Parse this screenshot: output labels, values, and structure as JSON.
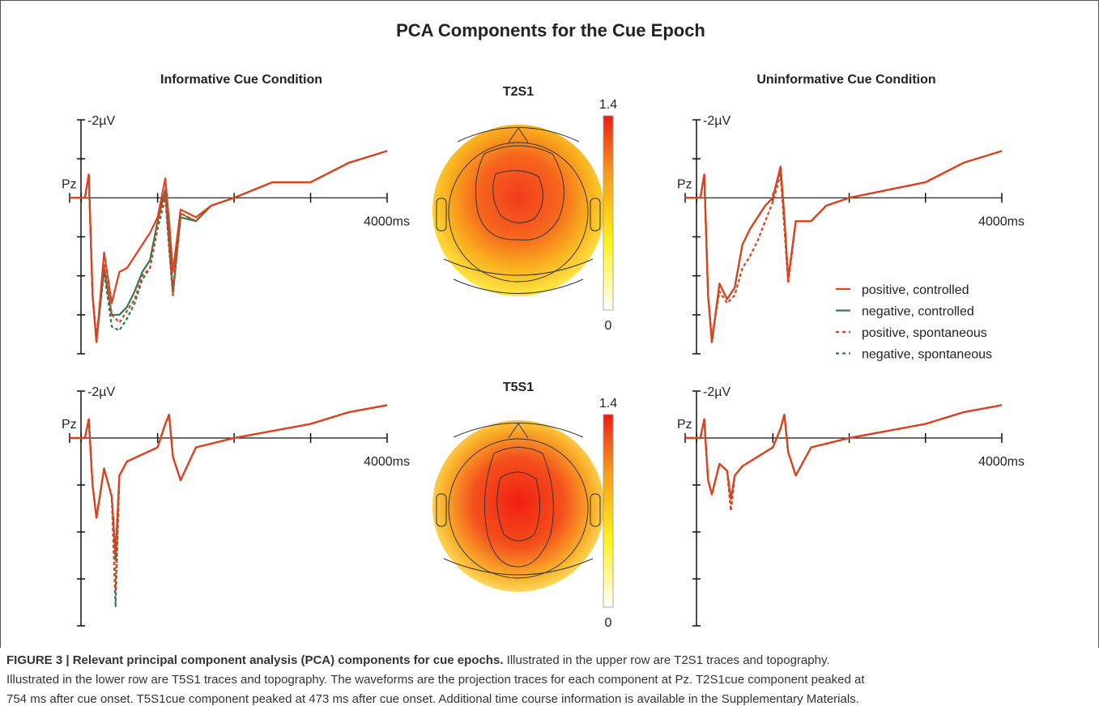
{
  "title": "PCA Components for the Cue Epoch",
  "conditions": [
    "Informative Cue Condition",
    "Uninformative Cue Condition"
  ],
  "series": [
    {
      "name": "positive, controlled",
      "color": "#e2401c",
      "dash": false
    },
    {
      "name": "negative, controlled",
      "color": "#2e7a56",
      "dash": false
    },
    {
      "name": "positive, spontaneous",
      "color": "#e2401c",
      "dash": true
    },
    {
      "name": "negative, spontaneous",
      "color": "#2e7a56",
      "dash": true
    }
  ],
  "panels": [
    {
      "type": "line",
      "electrode": "Pz",
      "xlim": [
        -150,
        4000
      ],
      "xticks": [
        0,
        1000,
        2000,
        3000,
        {
          "value": 4000,
          "label": "4000ms"
        }
      ],
      "ylim": [
        -2,
        4
      ],
      "yticks": [
        {
          "value": -2,
          "label": "-2µV"
        },
        -1,
        0,
        1,
        2,
        3,
        4
      ],
      "x": [
        -150,
        -100,
        0,
        50,
        100,
        150,
        200,
        300,
        400,
        500,
        600,
        700,
        800,
        900,
        1000,
        1100,
        1150,
        1200,
        1300,
        1500,
        1700,
        2000,
        2500,
        3000,
        3500,
        4000
      ],
      "values": [
        [
          0,
          0,
          0,
          0,
          -0.6,
          2.5,
          3.7,
          1.4,
          2.7,
          1.9,
          1.8,
          1.5,
          1.2,
          0.9,
          0.5,
          -0.5,
          0.6,
          1.9,
          0.3,
          0.5,
          0.2,
          0,
          -0.4,
          -0.4,
          -0.9,
          -1.2
        ],
        [
          0,
          0,
          0,
          0,
          -0.6,
          2.5,
          3.7,
          1.8,
          3.0,
          3.0,
          2.8,
          2.4,
          1.9,
          1.6,
          0.6,
          -0.2,
          1.0,
          2.4,
          0.5,
          0.6,
          0.2,
          0,
          -0.4,
          -0.4,
          -0.9,
          -1.2
        ],
        [
          0,
          0,
          0,
          0,
          -0.6,
          2.5,
          3.6,
          1.7,
          3.0,
          3.2,
          2.9,
          2.6,
          2.0,
          1.8,
          0.7,
          -0.1,
          1.2,
          2.5,
          0.4,
          0.6,
          0.2,
          0,
          -0.4,
          -0.4,
          -0.9,
          -1.2
        ],
        [
          0,
          0,
          0,
          0,
          -0.6,
          2.5,
          3.6,
          1.9,
          3.3,
          3.4,
          3.1,
          2.7,
          2.1,
          1.8,
          0.8,
          0,
          1.3,
          2.5,
          0.4,
          0.6,
          0.2,
          0,
          -0.4,
          -0.4,
          -0.9,
          -1.2
        ]
      ]
    },
    {
      "type": "line",
      "electrode": "Pz",
      "xlim": [
        -150,
        4000
      ],
      "xticks": [
        0,
        1000,
        2000,
        3000,
        {
          "value": 4000,
          "label": "4000ms"
        }
      ],
      "ylim": [
        -2,
        4
      ],
      "yticks": [
        {
          "value": -2,
          "label": "-2µV"
        },
        -1,
        0,
        1,
        2,
        3,
        4
      ],
      "x": [
        -150,
        -100,
        0,
        50,
        100,
        150,
        200,
        300,
        400,
        500,
        600,
        700,
        800,
        900,
        1000,
        1100,
        1150,
        1200,
        1300,
        1500,
        1700,
        2000,
        2500,
        3000,
        3500,
        4000
      ],
      "values": [
        [
          0,
          0,
          0,
          0,
          -0.6,
          2.5,
          3.7,
          2.2,
          2.6,
          2.3,
          1.2,
          0.8,
          0.5,
          0.2,
          0,
          -0.8,
          0.5,
          2.1,
          0.6,
          0.6,
          0.2,
          0,
          -0.2,
          -0.4,
          -0.9,
          -1.2
        ],
        [
          0,
          0,
          0,
          0,
          -0.6,
          2.5,
          3.7,
          2.2,
          2.6,
          2.3,
          1.2,
          0.8,
          0.5,
          0.2,
          0,
          -0.8,
          0.5,
          2.1,
          0.6,
          0.6,
          0.2,
          0,
          -0.2,
          -0.4,
          -0.9,
          -1.2
        ],
        [
          0,
          0,
          0,
          0,
          -0.6,
          2.5,
          3.6,
          2.4,
          2.7,
          2.5,
          1.8,
          1.5,
          1.1,
          0.6,
          0.1,
          -0.6,
          0.8,
          2.2,
          0.6,
          0.6,
          0.2,
          0,
          -0.2,
          -0.4,
          -0.9,
          -1.2
        ],
        [
          0,
          0,
          0,
          0,
          -0.6,
          2.5,
          3.7,
          2.2,
          2.6,
          2.3,
          1.2,
          0.8,
          0.5,
          0.2,
          0,
          -0.8,
          0.5,
          2.1,
          0.6,
          0.6,
          0.2,
          0,
          -0.2,
          -0.4,
          -0.9,
          -1.2
        ]
      ]
    },
    {
      "type": "line",
      "electrode": "Pz",
      "xlim": [
        -150,
        4000
      ],
      "xticks": [
        0,
        1000,
        2000,
        3000,
        {
          "value": 4000,
          "label": "4000ms"
        }
      ],
      "ylim": [
        -2,
        8
      ],
      "yticks": [
        {
          "value": -2,
          "label": "-2µV"
        },
        0,
        2,
        4,
        6,
        8
      ],
      "x": [
        -150,
        -100,
        0,
        50,
        100,
        150,
        200,
        300,
        400,
        450,
        500,
        600,
        800,
        1000,
        1100,
        1150,
        1200,
        1300,
        1500,
        2000,
        2500,
        3000,
        3500,
        4000
      ],
      "values": [
        [
          0,
          0,
          0,
          0,
          -0.8,
          2.0,
          3.4,
          1.3,
          2.5,
          4.9,
          1.6,
          1.0,
          0.7,
          0.4,
          -0.6,
          -1.0,
          0.8,
          1.8,
          0.4,
          0,
          -0.3,
          -0.6,
          -1.1,
          -1.4
        ],
        [
          0,
          0,
          0,
          0,
          -0.8,
          2.0,
          3.4,
          1.3,
          2.5,
          5.2,
          1.6,
          1.0,
          0.7,
          0.4,
          -0.6,
          -1.0,
          0.8,
          1.8,
          0.4,
          0,
          -0.3,
          -0.6,
          -1.1,
          -1.4
        ],
        [
          0,
          0,
          0,
          0,
          -0.8,
          2.0,
          3.4,
          1.3,
          2.5,
          6.5,
          1.6,
          1.0,
          0.7,
          0.4,
          -0.6,
          -1.0,
          0.8,
          1.8,
          0.4,
          0,
          -0.3,
          -0.6,
          -1.1,
          -1.4
        ],
        [
          0,
          0,
          0,
          0,
          -0.8,
          2.0,
          3.4,
          1.3,
          2.5,
          7.2,
          1.6,
          1.0,
          0.7,
          0.4,
          -0.6,
          -1.0,
          0.8,
          1.8,
          0.4,
          0,
          -0.3,
          -0.6,
          -1.1,
          -1.4
        ]
      ]
    },
    {
      "type": "line",
      "electrode": "Pz",
      "xlim": [
        -150,
        4000
      ],
      "xticks": [
        0,
        1000,
        2000,
        3000,
        {
          "value": 4000,
          "label": "4000ms"
        }
      ],
      "ylim": [
        -2,
        8
      ],
      "yticks": [
        {
          "value": -2,
          "label": "-2µV"
        },
        0,
        2,
        4,
        6,
        8
      ],
      "x": [
        -150,
        -100,
        0,
        50,
        100,
        150,
        200,
        300,
        400,
        450,
        500,
        600,
        800,
        1000,
        1100,
        1150,
        1200,
        1300,
        1500,
        2000,
        2500,
        3000,
        3500,
        4000
      ],
      "values": [
        [
          0,
          0,
          0,
          0,
          -0.8,
          1.8,
          2.4,
          1.1,
          1.4,
          2.6,
          1.6,
          1.2,
          0.8,
          0.4,
          -0.4,
          -1.0,
          0.6,
          1.6,
          0.4,
          0,
          -0.3,
          -0.6,
          -1.1,
          -1.4
        ],
        [
          0,
          0,
          0,
          0,
          -0.8,
          1.8,
          2.4,
          1.1,
          1.4,
          2.6,
          1.6,
          1.2,
          0.8,
          0.4,
          -0.4,
          -1.0,
          0.6,
          1.6,
          0.4,
          0,
          -0.3,
          -0.6,
          -1.1,
          -1.4
        ],
        [
          0,
          0,
          0,
          0,
          -0.8,
          1.8,
          2.4,
          1.1,
          1.4,
          3.1,
          1.6,
          1.2,
          0.8,
          0.4,
          -0.4,
          -1.0,
          0.6,
          1.6,
          0.4,
          0,
          -0.3,
          -0.6,
          -1.1,
          -1.4
        ],
        [
          0,
          0,
          0,
          0,
          -0.8,
          1.8,
          2.4,
          1.1,
          1.4,
          3.1,
          1.6,
          1.2,
          0.8,
          0.4,
          -0.4,
          -1.0,
          0.6,
          1.6,
          0.4,
          0,
          -0.3,
          -0.6,
          -1.1,
          -1.4
        ]
      ]
    }
  ],
  "topographies": [
    {
      "label": "T2S1",
      "colorbar": {
        "lim": [
          0,
          1.4
        ],
        "ticks": [
          0,
          1.4
        ]
      }
    },
    {
      "label": "T5S1",
      "colorbar": {
        "lim": [
          0,
          1.4
        ],
        "ticks": [
          0,
          1.4
        ]
      }
    }
  ],
  "caption": {
    "heading": "FIGURE 3 | Relevant principal component analysis (PCA) components for cue epochs.",
    "lines": [
      " Illustrated in the upper row are T2S1 traces and topography.",
      "Illustrated in the lower row are T5S1 traces and topography. The waveforms are the projection traces for each component at Pz. T2S1cue component peaked at",
      "754 ms after cue onset. T5S1cue component peaked at 473 ms after cue onset. Additional time course information is available in the Supplementary Materials."
    ]
  }
}
